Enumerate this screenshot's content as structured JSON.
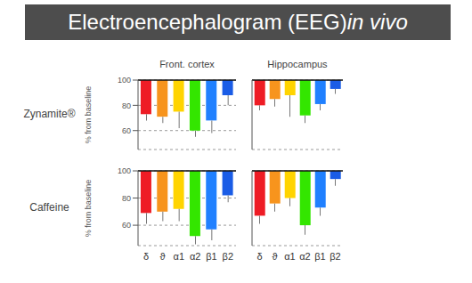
{
  "title": [
    "Electroencephalogram (EEG)",
    "in vivo"
  ],
  "rows": [
    "Zynamite®",
    "Caffeine"
  ],
  "columns": [
    "Front. cortex",
    "Hippocampus"
  ],
  "chart_data": [
    {
      "type": "bar",
      "ylabel": "% from baseline",
      "categories": [
        "δ",
        "ϑ",
        "α1",
        "α2",
        "β1",
        "β2"
      ],
      "values": [
        73,
        71,
        75,
        60,
        68,
        88
      ],
      "errors": [
        5,
        5,
        13,
        5,
        10,
        8
      ],
      "baseline": 100,
      "colors": [
        "#ee1c25",
        "#f7941d",
        "#ffd400",
        "#33e600",
        "#2080ff",
        "#1a5ce6"
      ],
      "ylim": [
        45,
        100
      ],
      "yticks": [
        60,
        80,
        100
      ],
      "grid": true,
      "tick_labels": "y"
    },
    {
      "type": "bar",
      "categories": [
        "δ",
        "ϑ",
        "α1",
        "α2",
        "β1",
        "β2"
      ],
      "values": [
        80,
        85,
        88,
        72,
        81,
        93
      ],
      "errors": [
        4,
        6,
        17,
        6,
        5,
        4
      ],
      "baseline": 100,
      "colors": [
        "#ee1c25",
        "#f7941d",
        "#ffd400",
        "#33e600",
        "#2080ff",
        "#1a5ce6"
      ],
      "ylim": [
        45,
        100
      ],
      "yticks": [
        60,
        80,
        100
      ],
      "grid": true,
      "tick_labels": false
    },
    {
      "type": "bar",
      "ylabel": "% from baseline",
      "categories": [
        "δ",
        "ϑ",
        "α1",
        "α2",
        "β1",
        "β2"
      ],
      "values": [
        69,
        70,
        72,
        52,
        57,
        82
      ],
      "errors": [
        8,
        7,
        9,
        6,
        8,
        5
      ],
      "baseline": 100,
      "colors": [
        "#ee1c25",
        "#f7941d",
        "#ffd400",
        "#33e600",
        "#2080ff",
        "#1a5ce6"
      ],
      "ylim": [
        45,
        100
      ],
      "yticks": [
        60,
        80,
        100
      ],
      "grid": true,
      "tick_labels": true
    },
    {
      "type": "bar",
      "categories": [
        "δ",
        "ϑ",
        "α1",
        "α2",
        "β1",
        "β2"
      ],
      "values": [
        67,
        76,
        80,
        60,
        73,
        94
      ],
      "errors": [
        6,
        6,
        6,
        7,
        6,
        5
      ],
      "baseline": 100,
      "colors": [
        "#ee1c25",
        "#f7941d",
        "#ffd400",
        "#33e600",
        "#2080ff",
        "#1a5ce6"
      ],
      "ylim": [
        45,
        100
      ],
      "yticks": [
        60,
        80,
        100
      ],
      "grid": true,
      "tick_labels": "x"
    }
  ]
}
